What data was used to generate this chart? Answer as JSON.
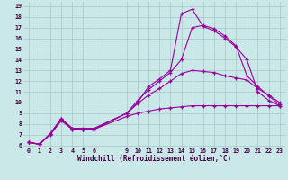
{
  "background_color": "#cbe8e8",
  "plot_bg": "#cbe8e8",
  "grid_color": "#aacccc",
  "line_color": "#990099",
  "xlabel": "Windchill (Refroidissement éolien,°C)",
  "xlim": [
    -0.5,
    23.5
  ],
  "ylim": [
    5.8,
    19.4
  ],
  "xticks": [
    0,
    1,
    2,
    3,
    4,
    5,
    6,
    9,
    10,
    11,
    12,
    13,
    14,
    15,
    16,
    17,
    18,
    19,
    20,
    21,
    22,
    23
  ],
  "yticks": [
    6,
    7,
    8,
    9,
    10,
    11,
    12,
    13,
    14,
    15,
    16,
    17,
    18,
    19
  ],
  "series1": {
    "points": [
      [
        0,
        6.3
      ],
      [
        1,
        6.1
      ],
      [
        2,
        7.1
      ],
      [
        3,
        8.5
      ],
      [
        4,
        7.5
      ],
      [
        5,
        7.5
      ],
      [
        6,
        7.5
      ],
      [
        9,
        9.0
      ],
      [
        10,
        10.0
      ],
      [
        11,
        11.5
      ],
      [
        12,
        12.2
      ],
      [
        13,
        13.0
      ],
      [
        14,
        18.3
      ],
      [
        15,
        18.7
      ],
      [
        16,
        17.1
      ],
      [
        17,
        16.7
      ],
      [
        18,
        16.0
      ],
      [
        19,
        15.2
      ],
      [
        20,
        14.0
      ],
      [
        21,
        11.0
      ],
      [
        22,
        10.2
      ],
      [
        23,
        9.7
      ]
    ]
  },
  "series2": {
    "points": [
      [
        0,
        6.3
      ],
      [
        1,
        6.1
      ],
      [
        2,
        7.1
      ],
      [
        3,
        8.4
      ],
      [
        4,
        7.6
      ],
      [
        5,
        7.5
      ],
      [
        6,
        7.5
      ],
      [
        9,
        9.0
      ],
      [
        10,
        10.2
      ],
      [
        11,
        11.2
      ],
      [
        12,
        12.0
      ],
      [
        13,
        12.8
      ],
      [
        14,
        14.0
      ],
      [
        15,
        17.0
      ],
      [
        16,
        17.2
      ],
      [
        17,
        16.9
      ],
      [
        18,
        16.2
      ],
      [
        19,
        15.3
      ],
      [
        20,
        12.5
      ],
      [
        21,
        11.5
      ],
      [
        22,
        10.6
      ],
      [
        23,
        9.8
      ]
    ]
  },
  "series3": {
    "points": [
      [
        0,
        6.3
      ],
      [
        1,
        6.1
      ],
      [
        2,
        7.1
      ],
      [
        3,
        8.5
      ],
      [
        4,
        7.6
      ],
      [
        5,
        7.6
      ],
      [
        6,
        7.6
      ],
      [
        9,
        9.0
      ],
      [
        10,
        9.9
      ],
      [
        11,
        10.7
      ],
      [
        12,
        11.3
      ],
      [
        13,
        12.0
      ],
      [
        14,
        12.7
      ],
      [
        15,
        13.0
      ],
      [
        16,
        12.9
      ],
      [
        17,
        12.8
      ],
      [
        18,
        12.5
      ],
      [
        19,
        12.3
      ],
      [
        20,
        12.1
      ],
      [
        21,
        11.3
      ],
      [
        22,
        10.7
      ],
      [
        23,
        10.0
      ]
    ]
  },
  "series4": {
    "points": [
      [
        0,
        6.3
      ],
      [
        1,
        6.1
      ],
      [
        2,
        7.0
      ],
      [
        3,
        8.3
      ],
      [
        4,
        7.5
      ],
      [
        5,
        7.5
      ],
      [
        6,
        7.5
      ],
      [
        9,
        8.7
      ],
      [
        10,
        9.0
      ],
      [
        11,
        9.2
      ],
      [
        12,
        9.4
      ],
      [
        13,
        9.5
      ],
      [
        14,
        9.6
      ],
      [
        15,
        9.7
      ],
      [
        16,
        9.7
      ],
      [
        17,
        9.7
      ],
      [
        18,
        9.7
      ],
      [
        19,
        9.7
      ],
      [
        20,
        9.7
      ],
      [
        21,
        9.7
      ],
      [
        22,
        9.7
      ],
      [
        23,
        9.7
      ]
    ]
  }
}
